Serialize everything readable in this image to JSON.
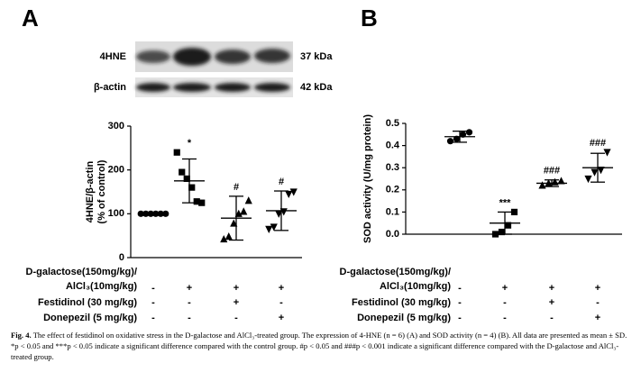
{
  "panel_labels": [
    "A",
    "B"
  ],
  "blot": {
    "rows": [
      {
        "label": "4HNE",
        "size": "37 kDa"
      },
      {
        "label": "β-actin",
        "size": "42 kDa"
      }
    ]
  },
  "chart_data": [
    {
      "type": "dotplot",
      "ylabel": [
        "4HNE/β-actin",
        "(% of control)"
      ],
      "categories": [
        null,
        null,
        null,
        null
      ],
      "ylim": [
        0,
        300
      ],
      "yticks": [
        0,
        100,
        200,
        300
      ],
      "color": "#000000",
      "groups": [
        {
          "marker": "circle",
          "points": [
            100,
            100,
            100,
            100,
            100,
            100
          ],
          "mean": 100,
          "sd": 1
        },
        {
          "marker": "square",
          "points": [
            240,
            195,
            180,
            160,
            128,
            125
          ],
          "mean": 175,
          "sd": 50
        },
        {
          "marker": "triangle-up",
          "points": [
            42,
            48,
            78,
            100,
            105,
            130
          ],
          "mean": 90,
          "sd": 50
        },
        {
          "marker": "triangle-down",
          "points": [
            65,
            70,
            100,
            105,
            145,
            150
          ],
          "mean": 107,
          "sd": 45
        }
      ],
      "significance": [
        null,
        "*",
        "#",
        "#"
      ],
      "treatments": [
        {
          "label": [
            "D-galactose(150mg/kg)/",
            "AlCl₃(10mg/kg)"
          ],
          "signs": [
            "-",
            "+",
            "+",
            "+"
          ]
        },
        {
          "label": [
            "Festidinol (30 mg/kg)"
          ],
          "signs": [
            "-",
            "-",
            "+",
            "-"
          ]
        },
        {
          "label": [
            "Donepezil (5 mg/kg)"
          ],
          "signs": [
            "-",
            "-",
            "-",
            "+"
          ]
        }
      ]
    },
    {
      "type": "dotplot",
      "ylabel": [
        "SOD activity (U/mg protein)"
      ],
      "categories": [
        null,
        null,
        null,
        null
      ],
      "ylim": [
        0,
        0.5
      ],
      "yticks": [
        {
          "value": 0,
          "label": "0.0"
        },
        0.1,
        0.2,
        0.3,
        0.4,
        0.5
      ],
      "color": "#000000",
      "groups": [
        {
          "marker": "circle",
          "points": [
            0.42,
            0.43,
            0.45,
            0.46
          ],
          "mean": 0.44,
          "sd": 0.025
        },
        {
          "marker": "square",
          "points": [
            0.0,
            0.01,
            0.04,
            0.1
          ],
          "mean": 0.05,
          "sd": 0.05
        },
        {
          "marker": "triangle-up",
          "points": [
            0.22,
            0.23,
            0.235,
            0.24
          ],
          "mean": 0.23,
          "sd": 0.015
        },
        {
          "marker": "triangle-down",
          "points": [
            0.25,
            0.28,
            0.29,
            0.37
          ],
          "mean": 0.3,
          "sd": 0.065
        }
      ],
      "significance": [
        null,
        "***",
        "###",
        "###"
      ],
      "treatments": [
        {
          "label": [
            "D-galactose(150mg/kg)/",
            "AlCl₃(10mg/kg)"
          ],
          "signs": [
            "-",
            "+",
            "+",
            "+"
          ]
        },
        {
          "label": [
            "Festidinol (30 mg/kg)"
          ],
          "signs": [
            "-",
            "-",
            "+",
            "-"
          ]
        },
        {
          "label": [
            "Donepezil (5 mg/kg)"
          ],
          "signs": [
            "-",
            "-",
            "-",
            "+"
          ]
        }
      ]
    }
  ],
  "caption": {
    "label": "Fig. 4.",
    "text": "The effect of festidinol on oxidative stress in the D-galactose and AlCl₃-treated group. The expression of 4-HNE (n = 6) (A) and SOD activity (n = 4) (B). All data are presented as mean ± SD. *p < 0.05 and ***p < 0.05 indicate a significant difference compared with the control group. #p < 0.05 and ###p < 0.001 indicate a significant difference compared with the D-galactose and AlCl₃-treated group."
  }
}
